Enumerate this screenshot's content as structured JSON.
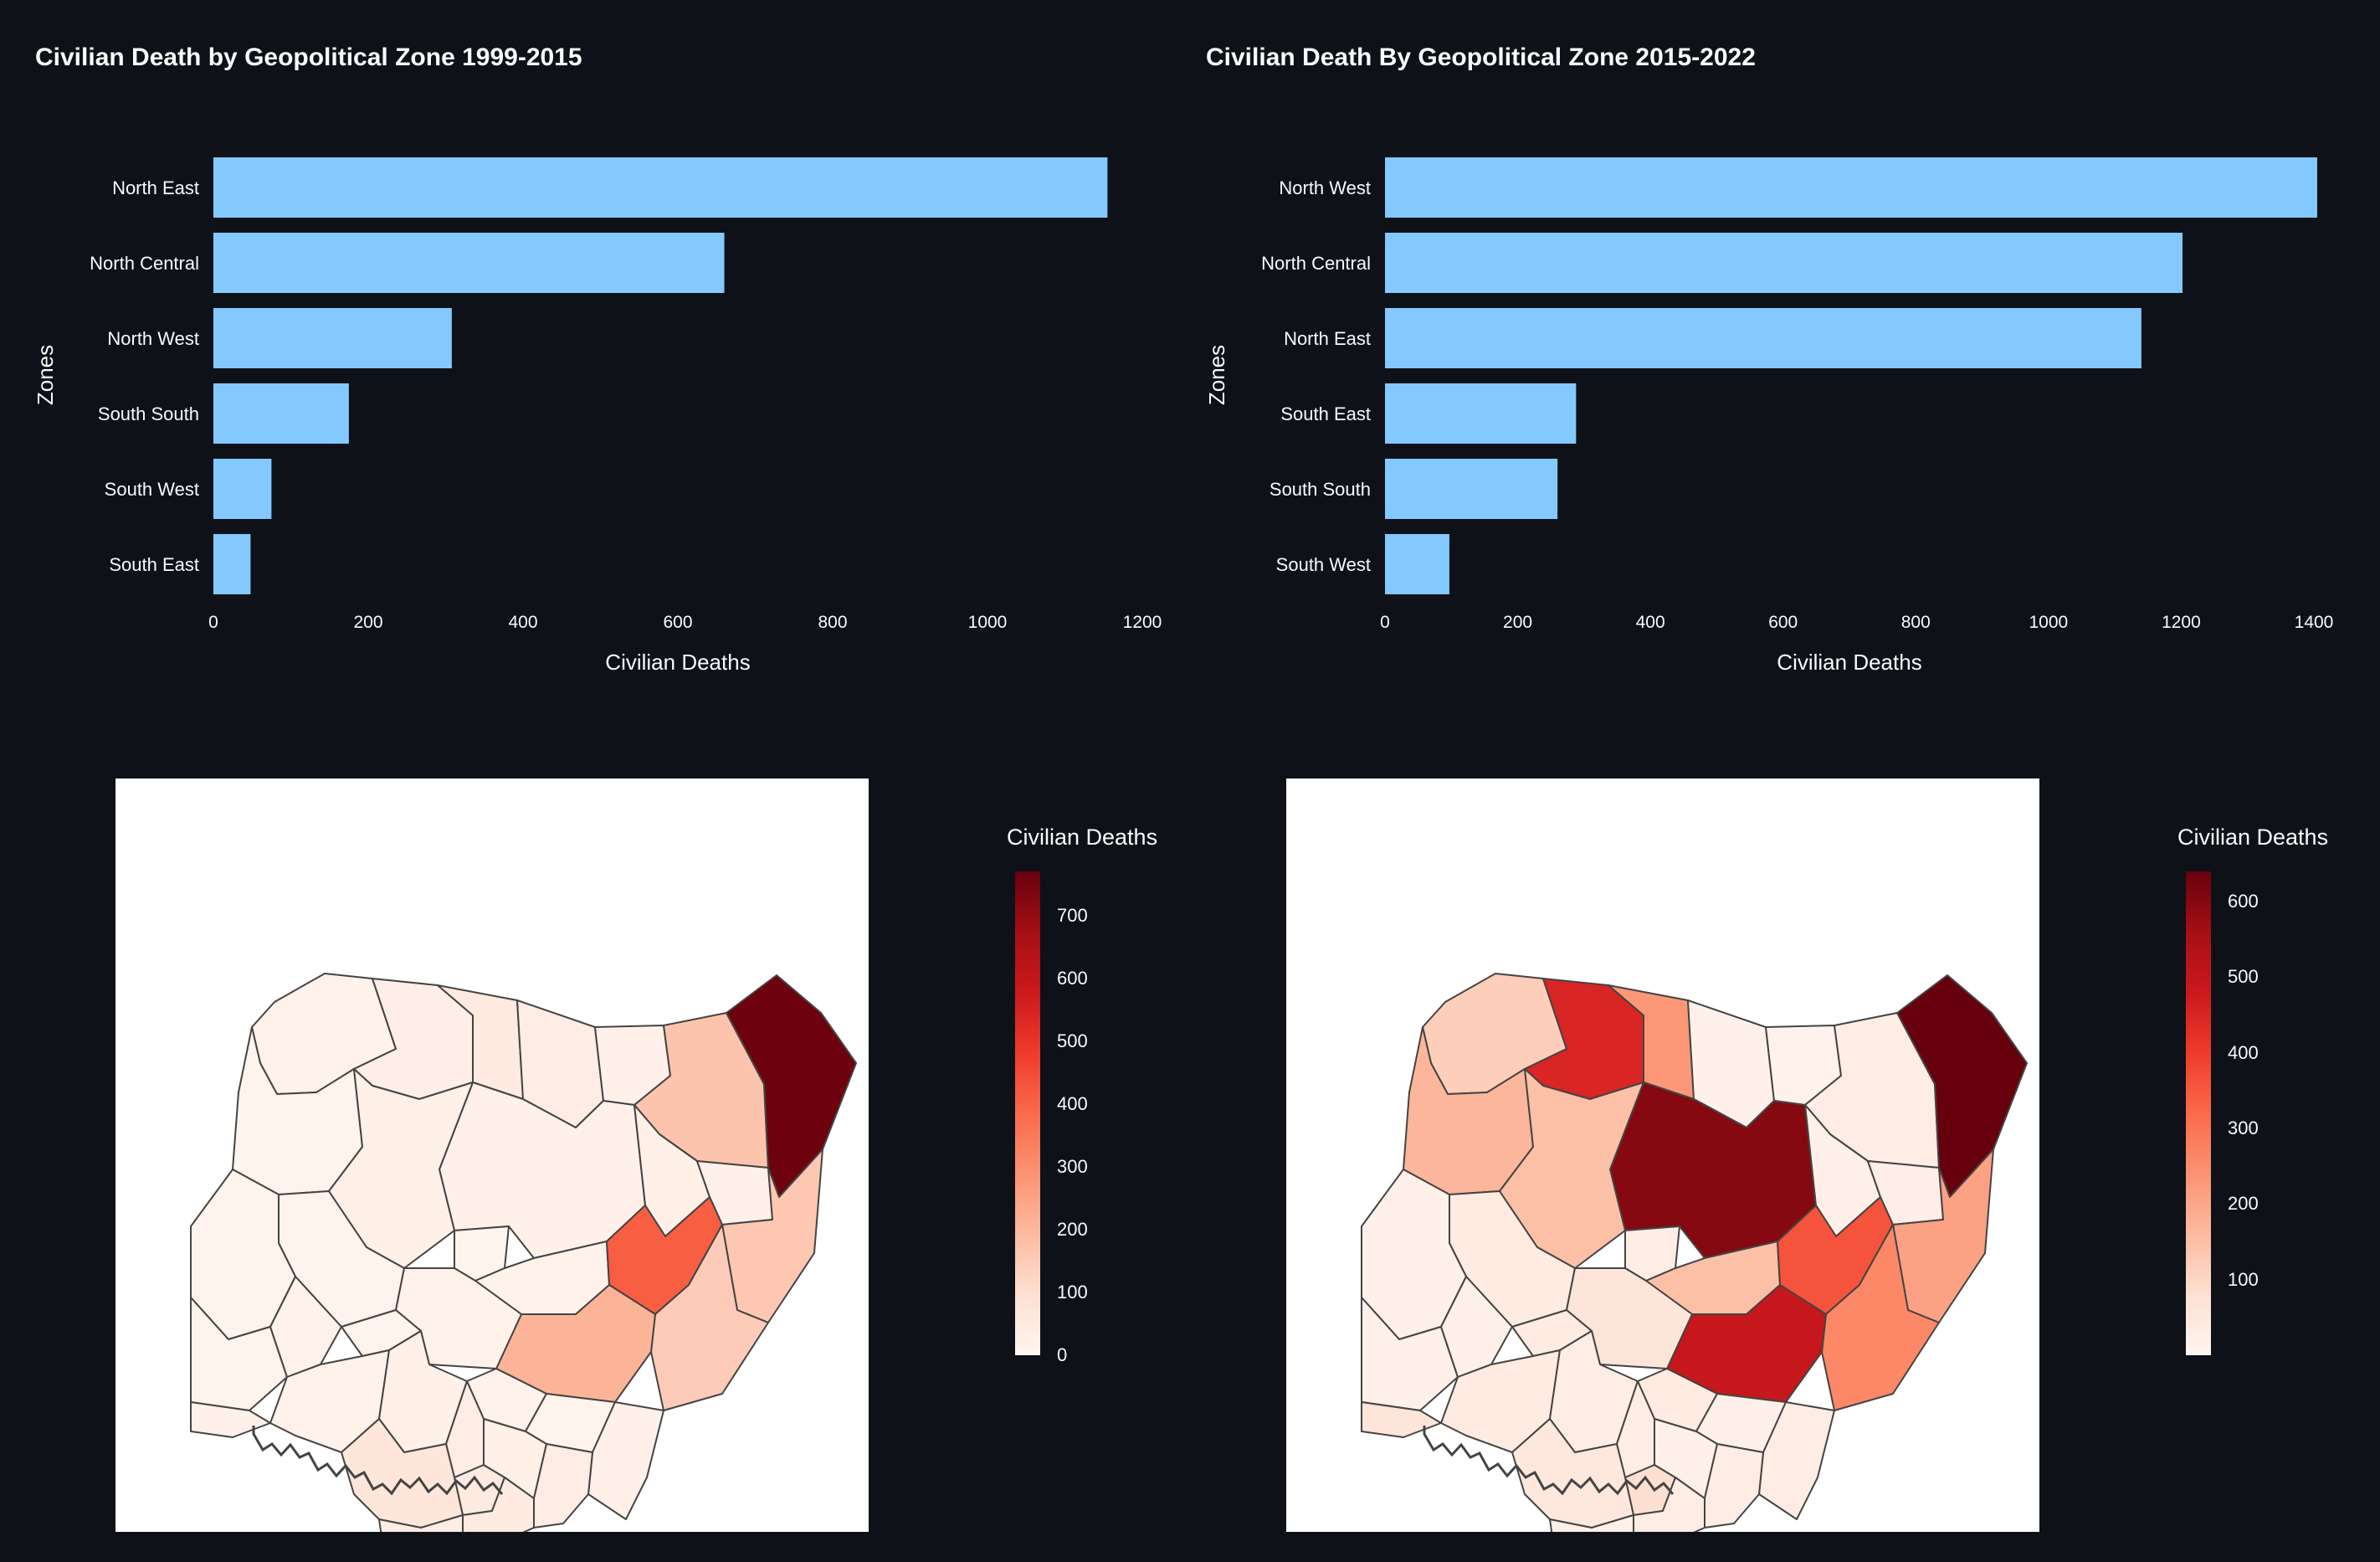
{
  "chart_data": [
    {
      "type": "bar",
      "orientation": "horizontal",
      "title": "Civilian Death by Geopolitical Zone 1999-2015",
      "xlabel": "Civilian Deaths",
      "ylabel": "Zones",
      "categories": [
        "North East",
        "North Central",
        "North West",
        "South South",
        "South West",
        "South East"
      ],
      "values": [
        1155,
        660,
        308,
        175,
        75,
        48
      ],
      "xlim": [
        0,
        1200
      ],
      "xticks": [
        0,
        200,
        400,
        600,
        800,
        1000,
        1200
      ],
      "bar_color": "#83c9ff"
    },
    {
      "type": "bar",
      "orientation": "horizontal",
      "title": "Civilian Death By Geopolitical Zone 2015-2022",
      "xlabel": "Civilian Deaths",
      "ylabel": "Zones",
      "categories": [
        "North West",
        "North Central",
        "North East",
        "South East",
        "South South",
        "South West"
      ],
      "values": [
        1405,
        1202,
        1140,
        288,
        260,
        97
      ],
      "xlim": [
        0,
        1400
      ],
      "xticks": [
        0,
        200,
        400,
        600,
        800,
        1000,
        1200,
        1400
      ],
      "bar_color": "#83c9ff"
    },
    {
      "type": "choropleth",
      "colorbar_title": "Civilian Deaths",
      "colorbar_range": [
        0,
        770
      ],
      "colorbar_ticks": [
        0,
        100,
        200,
        300,
        400,
        500,
        600,
        700
      ],
      "colorscale": "Reds"
    },
    {
      "type": "choropleth",
      "colorbar_title": "Civilian Deaths",
      "colorbar_range": [
        0,
        640
      ],
      "colorbar_ticks": [
        100,
        200,
        300,
        400,
        500,
        600
      ],
      "colorscale": "Reds"
    }
  ],
  "colors": {
    "background": "#0e1117",
    "text": "#fafafa",
    "bar": "#83c9ff",
    "map_border": "#444444"
  }
}
